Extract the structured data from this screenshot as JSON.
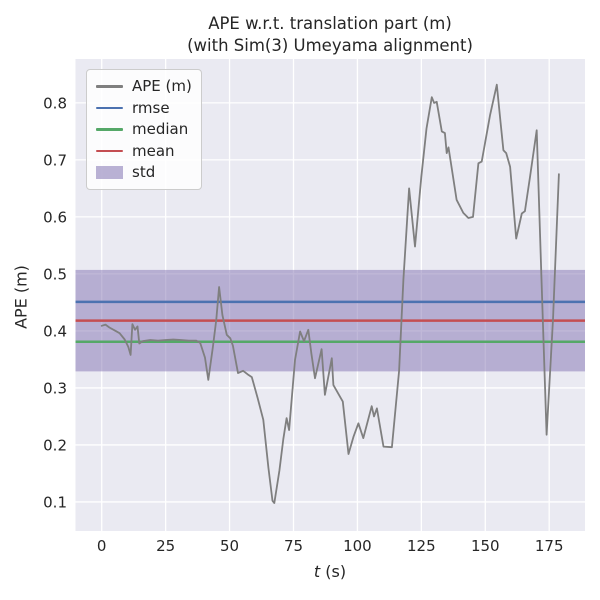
{
  "title": {
    "line1": "APE w.r.t. translation part (m)",
    "line2": "(with Sim(3) Umeyama alignment)"
  },
  "axes": {
    "xlabel_var": "t",
    "xlabel_unit": " (s)",
    "ylabel": "APE (m)"
  },
  "colors": {
    "figure_bg": "#ffffff",
    "axes_bg": "#eaeaf2",
    "grid": "#ffffff",
    "text": "#262626",
    "ape_line": "#7f7f7f",
    "rmse": "#4c72b0",
    "median": "#55a868",
    "mean": "#c44e52",
    "std": "#8172b2"
  },
  "legend": {
    "items": [
      {
        "label": "APE (m)",
        "swatch": "line",
        "color": "#7f7f7f"
      },
      {
        "label": "rmse",
        "swatch": "line",
        "color": "#4c72b0"
      },
      {
        "label": "median",
        "swatch": "line",
        "color": "#55a868"
      },
      {
        "label": "mean",
        "swatch": "line",
        "color": "#c44e52"
      },
      {
        "label": "std",
        "swatch": "patch",
        "color": "rgba(129,114,178,0.55)"
      }
    ]
  },
  "chart_data": {
    "type": "line",
    "title": "APE w.r.t. translation part (m) (with Sim(3) Umeyama alignment)",
    "xlabel": "t (s)",
    "ylabel": "APE (m)",
    "xlim": [
      -10.25,
      189.0
    ],
    "ylim": [
      0.049,
      0.877
    ],
    "xtick_values": [
      0,
      25,
      50,
      75,
      100,
      125,
      150,
      175
    ],
    "xtick_labels": [
      "0",
      "25",
      "50",
      "75",
      "100",
      "125",
      "150",
      "175"
    ],
    "ytick_values": [
      0.1,
      0.2,
      0.3,
      0.4,
      0.5,
      0.6,
      0.7,
      0.8
    ],
    "ytick_labels": [
      "0.1",
      "0.2",
      "0.3",
      "0.4",
      "0.5",
      "0.6",
      "0.7",
      "0.8"
    ],
    "grid": true,
    "legend_position": "upper left",
    "stats": {
      "rmse": 0.451,
      "mean": 0.418,
      "median": 0.381,
      "std": 0.089
    },
    "series": [
      {
        "name": "APE (m)",
        "type": "line",
        "color": "#7f7f7f",
        "points": [
          [
            0,
            0.409
          ],
          [
            1.5,
            0.411
          ],
          [
            3,
            0.406
          ],
          [
            5,
            0.401
          ],
          [
            7,
            0.396
          ],
          [
            9,
            0.385
          ],
          [
            10.4,
            0.372
          ],
          [
            11.3,
            0.358
          ],
          [
            12,
            0.412
          ],
          [
            13,
            0.402
          ],
          [
            14,
            0.408
          ],
          [
            14.7,
            0.378
          ],
          [
            16,
            0.382
          ],
          [
            19,
            0.384
          ],
          [
            22,
            0.383
          ],
          [
            25,
            0.384
          ],
          [
            28,
            0.385
          ],
          [
            31,
            0.384
          ],
          [
            34,
            0.383
          ],
          [
            37,
            0.383
          ],
          [
            38.5,
            0.379
          ],
          [
            40.4,
            0.353
          ],
          [
            41.7,
            0.314
          ],
          [
            43.5,
            0.372
          ],
          [
            44.8,
            0.42
          ],
          [
            45.9,
            0.477
          ],
          [
            47.2,
            0.428
          ],
          [
            48.9,
            0.393
          ],
          [
            50.3,
            0.387
          ],
          [
            51.3,
            0.374
          ],
          [
            53.3,
            0.326
          ],
          [
            55.3,
            0.33
          ],
          [
            57,
            0.324
          ],
          [
            58.7,
            0.319
          ],
          [
            61,
            0.282
          ],
          [
            63.2,
            0.244
          ],
          [
            65.2,
            0.16
          ],
          [
            66.8,
            0.102
          ],
          [
            67.5,
            0.098
          ],
          [
            69.5,
            0.155
          ],
          [
            71,
            0.21
          ],
          [
            72.3,
            0.247
          ],
          [
            73.3,
            0.226
          ],
          [
            75.6,
            0.349
          ],
          [
            77.6,
            0.399
          ],
          [
            79.1,
            0.382
          ],
          [
            80.8,
            0.402
          ],
          [
            82,
            0.36
          ],
          [
            83.4,
            0.317
          ],
          [
            86,
            0.368
          ],
          [
            87.3,
            0.288
          ],
          [
            90,
            0.352
          ],
          [
            90.6,
            0.305
          ],
          [
            93.4,
            0.283
          ],
          [
            94.3,
            0.276
          ],
          [
            96.5,
            0.184
          ],
          [
            98.5,
            0.215
          ],
          [
            100.4,
            0.238
          ],
          [
            102.3,
            0.212
          ],
          [
            105.6,
            0.268
          ],
          [
            106.5,
            0.25
          ],
          [
            107.6,
            0.264
          ],
          [
            110.2,
            0.197
          ],
          [
            113.5,
            0.196
          ],
          [
            116.3,
            0.33
          ],
          [
            118,
            0.49
          ],
          [
            120.2,
            0.65
          ],
          [
            122.5,
            0.548
          ],
          [
            125,
            0.67
          ],
          [
            127,
            0.755
          ],
          [
            129.1,
            0.81
          ],
          [
            130,
            0.8
          ],
          [
            131,
            0.802
          ],
          [
            133,
            0.75
          ],
          [
            134.2,
            0.747
          ],
          [
            134.9,
            0.712
          ],
          [
            135.6,
            0.722
          ],
          [
            138.8,
            0.63
          ],
          [
            141.4,
            0.607
          ],
          [
            143.4,
            0.598
          ],
          [
            145.2,
            0.6
          ],
          [
            147.3,
            0.694
          ],
          [
            148.6,
            0.697
          ],
          [
            151.9,
            0.779
          ],
          [
            154.5,
            0.832
          ],
          [
            156,
            0.765
          ],
          [
            157.1,
            0.717
          ],
          [
            158.2,
            0.712
          ],
          [
            159.7,
            0.688
          ],
          [
            162.1,
            0.562
          ],
          [
            164.3,
            0.606
          ],
          [
            165.5,
            0.61
          ],
          [
            167.5,
            0.67
          ],
          [
            170.1,
            0.752
          ],
          [
            172,
            0.49
          ],
          [
            174,
            0.218
          ],
          [
            176.5,
            0.42
          ],
          [
            178.8,
            0.675
          ]
        ]
      },
      {
        "name": "rmse",
        "type": "hline",
        "color": "#4c72b0",
        "value": 0.451
      },
      {
        "name": "median",
        "type": "hline",
        "color": "#55a868",
        "value": 0.381
      },
      {
        "name": "mean",
        "type": "hline",
        "color": "#c44e52",
        "value": 0.418
      },
      {
        "name": "std",
        "type": "hband",
        "color": "#8172b2",
        "range": [
          0.329,
          0.507
        ]
      }
    ]
  }
}
